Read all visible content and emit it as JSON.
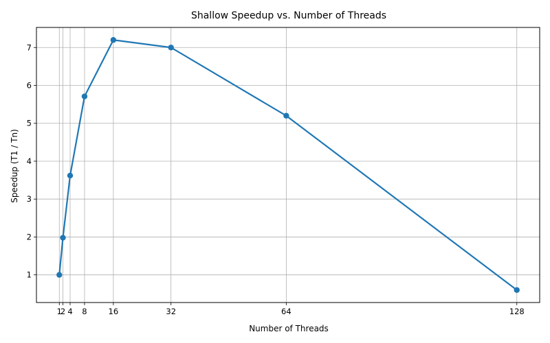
{
  "chart_data": {
    "type": "line",
    "title": "Shallow Speedup vs. Number of Threads",
    "xlabel": "Number of Threads",
    "ylabel": "Speedup (T1 / Tn)",
    "x": [
      1,
      2,
      4,
      8,
      16,
      32,
      64,
      128
    ],
    "series": [
      {
        "values": [
          1.0,
          1.98,
          3.62,
          5.71,
          7.2,
          7.0,
          5.2,
          0.6
        ]
      }
    ],
    "xticks": [
      1,
      2,
      4,
      8,
      16,
      32,
      64,
      128
    ],
    "yticks": [
      1,
      2,
      3,
      4,
      5,
      6,
      7
    ],
    "xlim": [
      -5.35,
      134.35
    ],
    "ylim": [
      0.27,
      7.53
    ],
    "grid": true,
    "color": "#1f77b4",
    "marker": "circle"
  }
}
